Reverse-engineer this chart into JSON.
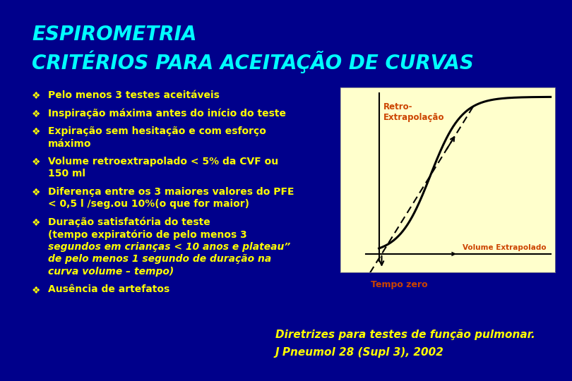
{
  "bg_color": "#00008B",
  "title_line1": "ESPIROMETRIA",
  "title_line2": "CRITÉRIOS PARA ACEITAÇÃO DE CURVAS",
  "title_color": "#00FFFF",
  "title_fontsize": 20,
  "bullet_color": "#FFFF00",
  "bullet_symbol": "❖",
  "bullets": [
    {
      "lines": [
        "Pelo menos 3 testes aceitáveis"
      ],
      "italic_from": 99
    },
    {
      "lines": [
        "Inspiração máxima antes do início do teste"
      ],
      "italic_from": 99
    },
    {
      "lines": [
        "Expiração sem hesitação e com esforço",
        "máximo"
      ],
      "italic_from": 99
    },
    {
      "lines": [
        "Volume retroextrapolado < 5% da CVF ou",
        "150 ml"
      ],
      "italic_from": 99
    },
    {
      "lines": [
        "Diferença entre os 3 maiores valores do PFE",
        "< 0,5 l /seg.ou 10%(o que for maior)"
      ],
      "italic_from": 99
    },
    {
      "lines": [
        "Duração satisfatória do teste",
        "(tempo expiratório de pelo menos 3",
        "segundos em crianças < 10 anos e plateau”",
        "de pelo menos 1 segundo de duração na",
        "curva volume – tempo)"
      ],
      "italic_from": 2
    },
    {
      "lines": [
        "Ausência de artefatos"
      ],
      "italic_from": 99
    }
  ],
  "ref_line1": "Diretrizes para testes de função pulmonar.",
  "ref_line2": "J Pneumol 28 (Supl 3), 2002",
  "ref_color": "#FFFF00",
  "ref_fontsize": 11,
  "graph_bg": "#FFFFCC",
  "graph_label_retro": "Retro-\nExtrapolação",
  "graph_label_volume": "Volume Extrapolado",
  "graph_label_tempo": "Tempo zero",
  "graph_label_color": "#CC4400"
}
